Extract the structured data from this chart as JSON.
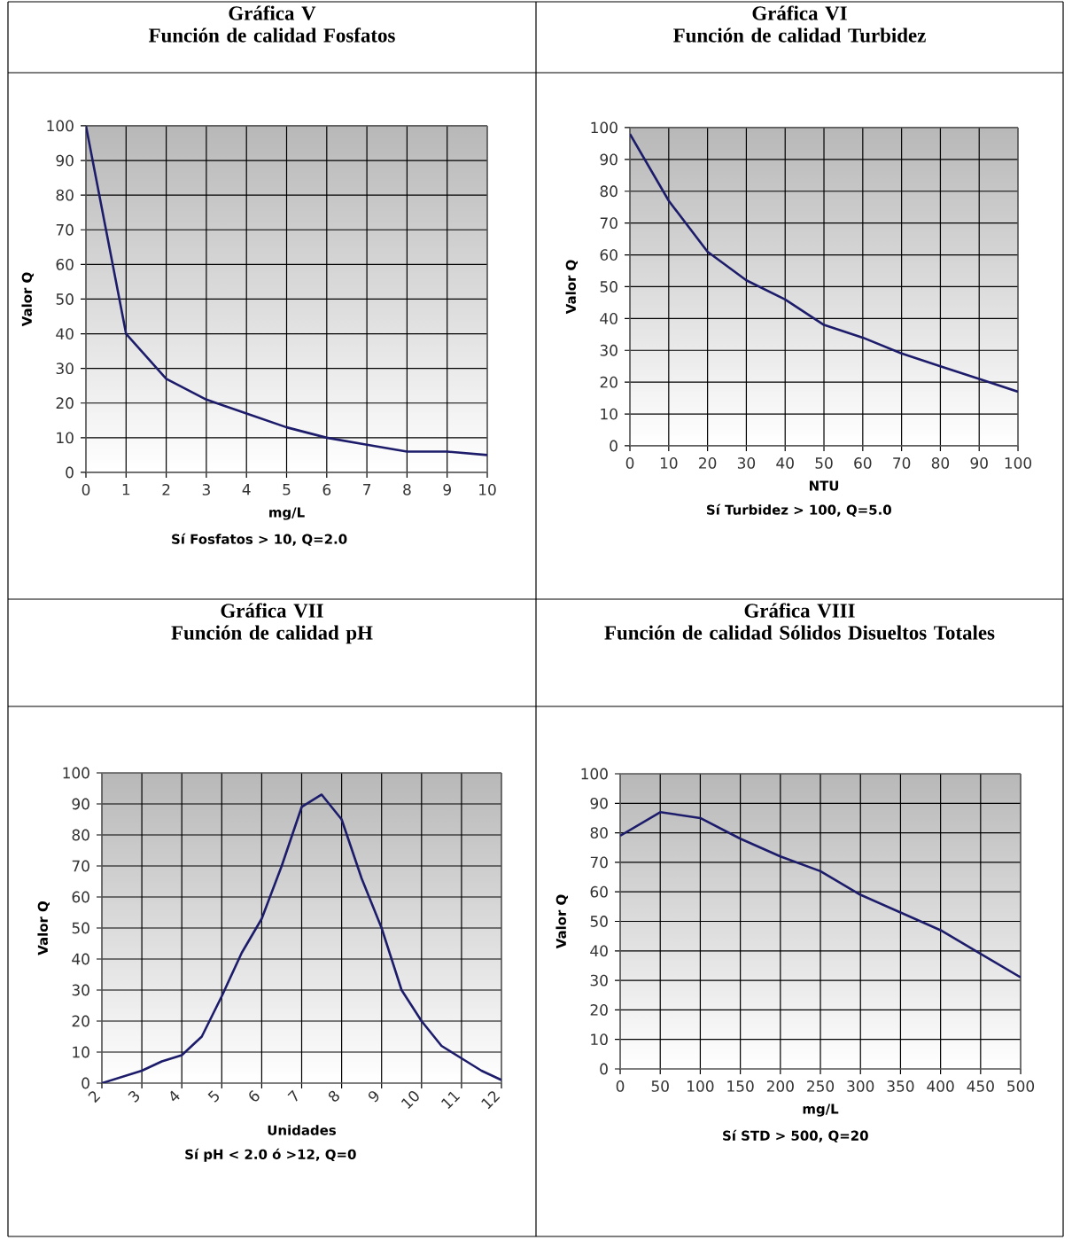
{
  "chart_data": [
    {
      "type": "line",
      "title": "Gráfica V",
      "subtitle": "Función de calidad Fosfatos",
      "xlabel": "mg/L",
      "ylabel": "Valor Q",
      "annotations": [
        "Sí Fosfatos > 10, Q=2.0"
      ],
      "x": [
        0,
        1,
        2,
        3,
        4,
        5,
        6,
        7,
        8,
        9,
        10
      ],
      "values": [
        100,
        40,
        27,
        21,
        17,
        13,
        10,
        8,
        6,
        6,
        5
      ],
      "color": "#1c1c6b",
      "xlim": [
        0,
        10
      ],
      "ylim": [
        0,
        100
      ],
      "xticks": [
        0,
        1,
        2,
        3,
        4,
        5,
        6,
        7,
        8,
        9,
        10
      ],
      "yticks": [
        0,
        10,
        20,
        30,
        40,
        50,
        60,
        70,
        80,
        90,
        100
      ],
      "grid": true
    },
    {
      "type": "line",
      "title": "Gráfica VI",
      "subtitle": "Función de calidad Turbidez",
      "xlabel": "NTU",
      "ylabel": "Valor Q",
      "annotations": [
        "Sí Turbidez > 100, Q=5.0"
      ],
      "x": [
        0,
        10,
        20,
        30,
        40,
        50,
        60,
        70,
        80,
        90,
        100
      ],
      "values": [
        98,
        77,
        61,
        52,
        46,
        38,
        34,
        29,
        25,
        21,
        17
      ],
      "color": "#1c1c6b",
      "xlim": [
        0,
        100
      ],
      "ylim": [
        0,
        100
      ],
      "xticks": [
        0,
        10,
        20,
        30,
        40,
        50,
        60,
        70,
        80,
        90,
        100
      ],
      "yticks": [
        0,
        10,
        20,
        30,
        40,
        50,
        60,
        70,
        80,
        90,
        100
      ],
      "grid": true
    },
    {
      "type": "line",
      "title": "Gráfica VII",
      "subtitle": "Función de calidad pH",
      "xlabel": "Unidades",
      "ylabel": "Valor Q",
      "annotations": [
        "Sí pH < 2.0 ó >12, Q=0"
      ],
      "x": [
        2,
        3,
        3.5,
        4,
        4.5,
        5,
        5.5,
        6,
        6.5,
        7,
        7.5,
        8,
        8.5,
        9,
        9.5,
        10,
        10.5,
        11,
        11.5,
        12
      ],
      "values": [
        0,
        4,
        7,
        9,
        15,
        28,
        42,
        53,
        70,
        89,
        93,
        85,
        66,
        50,
        30,
        20,
        12,
        8,
        4,
        1
      ],
      "color": "#1c1c6b",
      "xlim": [
        2,
        12
      ],
      "ylim": [
        0,
        100
      ],
      "xticks": [
        2,
        3,
        4,
        5,
        6,
        7,
        8,
        9,
        10,
        11,
        12
      ],
      "yticks": [
        0,
        10,
        20,
        30,
        40,
        50,
        60,
        70,
        80,
        90,
        100
      ],
      "grid": true
    },
    {
      "type": "line",
      "title": "Gráfica VIII",
      "subtitle": "Función de calidad Sólidos Disueltos Totales",
      "xlabel": "mg/L",
      "ylabel": "Valor Q",
      "annotations": [
        "Sí STD > 500, Q=20"
      ],
      "x": [
        0,
        50,
        100,
        150,
        200,
        250,
        300,
        350,
        400,
        450,
        500
      ],
      "values": [
        79,
        87,
        85,
        78,
        72,
        67,
        59,
        53,
        47,
        39,
        31
      ],
      "color": "#1c1c6b",
      "xlim": [
        0,
        500
      ],
      "ylim": [
        0,
        100
      ],
      "xticks": [
        0,
        50,
        100,
        150,
        200,
        250,
        300,
        350,
        400,
        450,
        500
      ],
      "yticks": [
        0,
        10,
        20,
        30,
        40,
        50,
        60,
        70,
        80,
        90,
        100
      ],
      "grid": true
    }
  ]
}
